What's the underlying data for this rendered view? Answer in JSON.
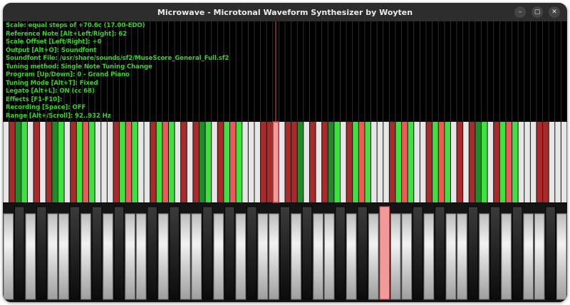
{
  "window": {
    "title": "Microwave - Microtonal Waveform Synthesizer by Woyten",
    "controls": [
      "–",
      "▢",
      "✕"
    ]
  },
  "status_lines": [
    "Scale: equal steps of +70.6c (17.00-EDO)",
    "Reference Note [Alt+Left/Right]: 62",
    "Scale Offset [Left/Right]: +0",
    "Output [Alt+O]: Soundfont",
    "Soundfont File: /usr/share/sounds/sf2/MuseScore_General_Full.sf2",
    "Tuning method: Single Note Tuning Change",
    "Program [Up/Down]: 0 - Grand Piano",
    "Tuning Mode [Alt+T]: Fixed",
    "Legato [Alt+L]: ON (cc 68)",
    "Effects [F1-F10]:",
    "Recording [Space]: OFF",
    "Range [Alt+/Scroll]: 92..932 Hz"
  ],
  "colors": {
    "status_text": "#39d12a",
    "bright_green": "#3ee23e",
    "dark_green": "#1e8a2a",
    "bright_red": "#f25757",
    "dark_red": "#a82a2a",
    "key_white": "#e6e6e6",
    "key_black": "#1c1c1c",
    "highlight": "#f29a9a",
    "marker_line": "#d04040"
  },
  "scale_keyboard": {
    "keys": [
      "w",
      "dr",
      "dg",
      "bg",
      "w",
      "dr",
      "w",
      "dr",
      "dg",
      "bg",
      "w",
      "dr",
      "bg",
      "br",
      "bg",
      "w",
      "w",
      "w",
      "dr",
      "bg",
      "br",
      "bg",
      "w",
      "w",
      "dr",
      "bg",
      "br",
      "bg",
      "w",
      "dr",
      "w",
      "dr",
      "dg",
      "bg",
      "w",
      "dr",
      "bg",
      "br",
      "bg",
      "w",
      "w",
      "w",
      "dr",
      "dr",
      "hl",
      "w",
      "dr",
      "dr",
      "dg",
      "w",
      "dr",
      "w",
      "dr",
      "dg",
      "bg",
      "w",
      "dr",
      "bg",
      "br",
      "bg",
      "w",
      "w",
      "w",
      "dr",
      "bg",
      "br",
      "bg",
      "w",
      "w",
      "dr",
      "bg",
      "br",
      "bg",
      "w",
      "dr",
      "w",
      "dr",
      "dg",
      "bg",
      "w",
      "dr",
      "bg",
      "br",
      "bg",
      "w",
      "w",
      "w",
      "dr",
      "dr",
      "w",
      "w",
      "w"
    ],
    "highlighted_index": 44
  },
  "piano_keyboard": {
    "keys": [
      "w",
      "b",
      "w",
      "b",
      "w",
      "w",
      "b",
      "w",
      "b",
      "w",
      "b",
      "w",
      "w",
      "b",
      "w",
      "b",
      "w",
      "w",
      "b",
      "w",
      "b",
      "w",
      "b",
      "w",
      "w",
      "b",
      "w",
      "b",
      "w",
      "w",
      "b",
      "w",
      "b",
      "w",
      "b",
      "w",
      "w",
      "b",
      "w",
      "b",
      "w",
      "w",
      "b",
      "w",
      "b",
      "w",
      "b",
      "w",
      "w",
      "b",
      "w"
    ],
    "highlighted_index": 34
  }
}
